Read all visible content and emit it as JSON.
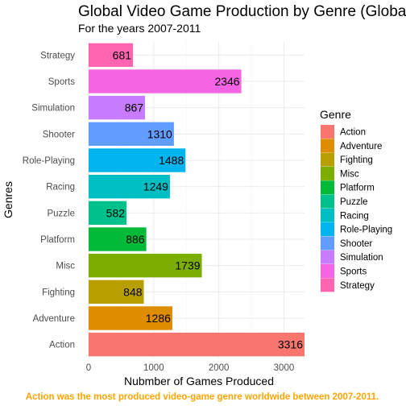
{
  "chart_data": {
    "type": "bar",
    "orientation": "horizontal",
    "title": "Global Video Game Production by Genre (Global)",
    "subtitle": "For the years 2007-2011",
    "xlabel": "Nubmber of Games Produced",
    "ylabel": "Genres",
    "xlim": [
      0,
      3316
    ],
    "xticks": [
      0,
      1000,
      2000,
      3000
    ],
    "grid": true,
    "legend_title": "Genre",
    "legend_position": "right",
    "categories": [
      "Action",
      "Adventure",
      "Fighting",
      "Misc",
      "Platform",
      "Puzzle",
      "Racing",
      "Role-Playing",
      "Shooter",
      "Simulation",
      "Sports",
      "Strategy"
    ],
    "values": [
      3316,
      1286,
      848,
      1739,
      886,
      582,
      1249,
      1488,
      1310,
      867,
      2346,
      681
    ],
    "colors": [
      "#F8766D",
      "#DE8C00",
      "#B79F00",
      "#7CAE00",
      "#00BA38",
      "#00C08B",
      "#00BFC4",
      "#00B4F0",
      "#619CFF",
      "#C77CFF",
      "#F564E3",
      "#FF64B0"
    ],
    "caption": "Action was the most produced video-game genre worldwide between 2007-2011.",
    "caption_color": "#FFA500"
  }
}
